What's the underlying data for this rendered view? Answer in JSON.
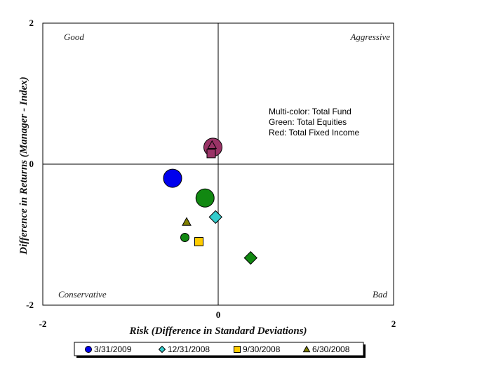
{
  "chart_data": {
    "type": "scatter",
    "xlabel": "Risk (Difference in Standard Deviations)",
    "ylabel": "Difference in Returns (Manager - Index)",
    "xlim": [
      -2,
      2
    ],
    "ylim": [
      -2,
      2
    ],
    "x_ticks": [
      "-2",
      "0",
      "2"
    ],
    "y_ticks": [
      "2",
      "0",
      "-2"
    ],
    "grid": false,
    "quadrants": {
      "top_left": "Good",
      "top_right": "Aggressive",
      "bottom_left": "Conservative",
      "bottom_right": "Bad"
    },
    "annotation_lines": [
      "Multi-color: Total Fund",
      "Green: Total Equities",
      "Red: Total Fixed Income"
    ],
    "legend_position": "bottom",
    "series": [
      {
        "name": "3/31/2009",
        "marker": "circle",
        "points": [
          {
            "x": -0.52,
            "y": -0.2,
            "color": "#0000ee",
            "size": "large"
          },
          {
            "x": -0.15,
            "y": -0.48,
            "color": "#118811",
            "size": "large"
          },
          {
            "x": -0.06,
            "y": 0.24,
            "color": "#993366",
            "size": "large"
          }
        ]
      },
      {
        "name": "12/31/2008",
        "marker": "diamond",
        "points": [
          {
            "x": -0.03,
            "y": -0.75,
            "color": "#33cccc",
            "size": "medium"
          },
          {
            "x": 0.37,
            "y": -1.33,
            "color": "#118811",
            "size": "medium"
          }
        ]
      },
      {
        "name": "9/30/2008",
        "marker": "square",
        "points": [
          {
            "x": -0.22,
            "y": -1.1,
            "color": "#ffcc00",
            "size": "small"
          },
          {
            "x": -0.08,
            "y": 0.15,
            "color": "#993366",
            "size": "small"
          }
        ]
      },
      {
        "name": "6/30/2008",
        "marker": "triangle",
        "points": [
          {
            "x": -0.36,
            "y": -0.82,
            "color": "#808000",
            "size": "small"
          },
          {
            "x": -0.07,
            "y": 0.27,
            "color": "#993366",
            "size": "small"
          }
        ]
      },
      {
        "name": "",
        "marker": "circle",
        "points": [
          {
            "x": -0.38,
            "y": -1.04,
            "color": "#118811",
            "size": "small"
          }
        ]
      }
    ],
    "legend_colors": {
      "3/31/2009": "#0000ee",
      "12/31/2008": "#33cccc",
      "9/30/2008": "#ffcc00",
      "6/30/2008": "#808000"
    }
  }
}
